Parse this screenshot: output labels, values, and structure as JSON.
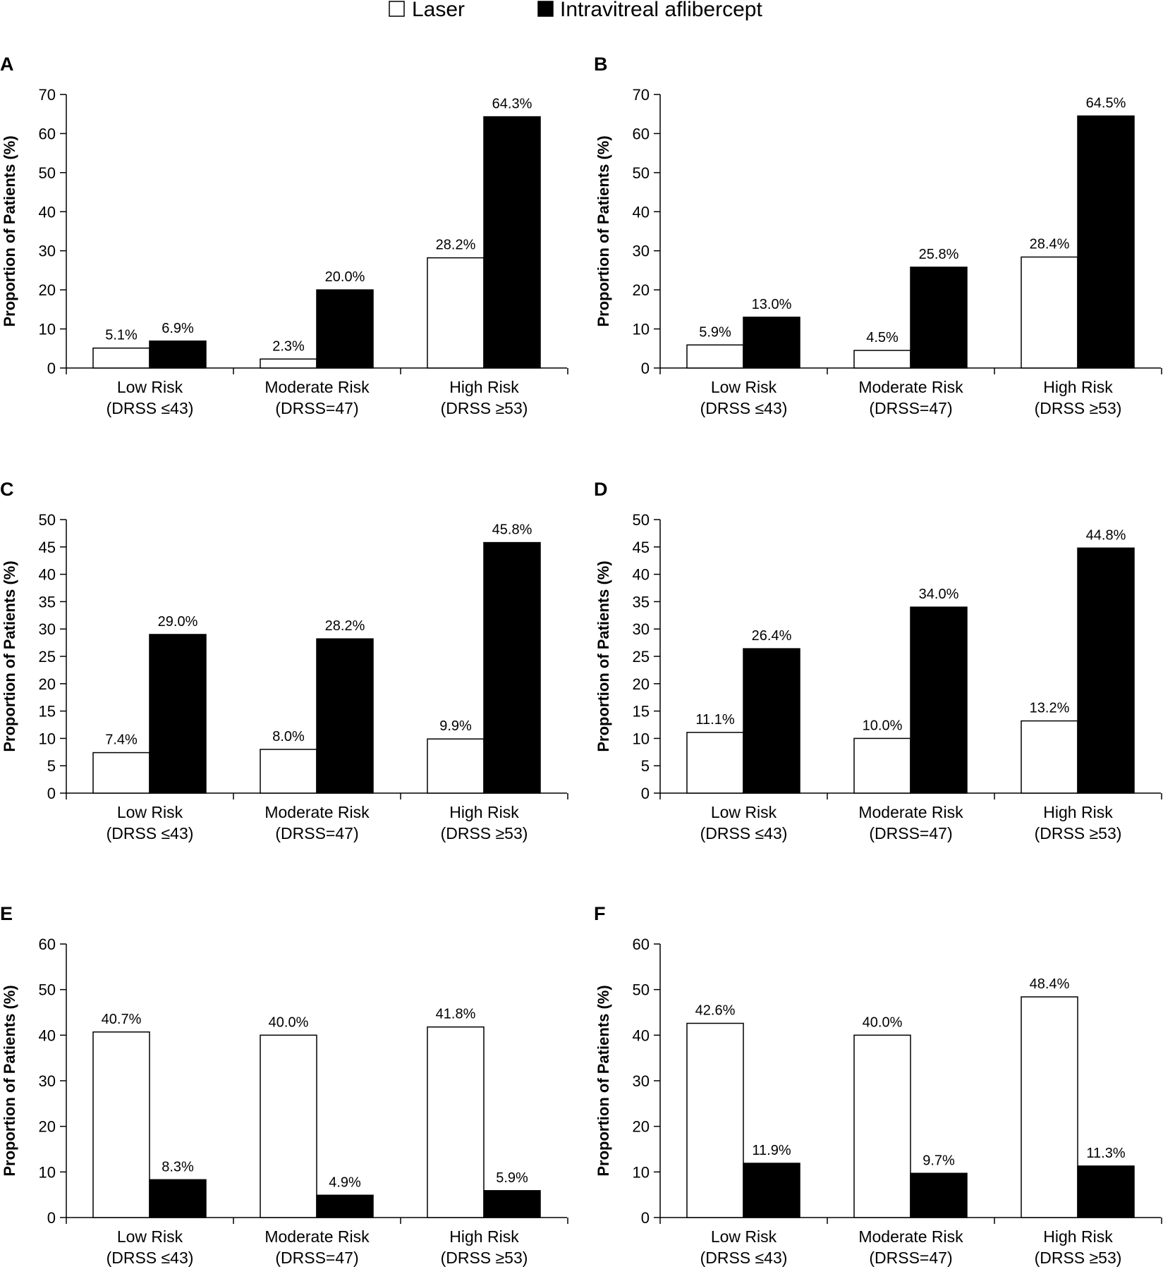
{
  "legend": {
    "laser_label": "Laser",
    "aflibercept_label": "Intravitreal aflibercept",
    "laser_color": "#ffffff",
    "aflibercept_color": "#000000"
  },
  "chart_data": [
    {
      "type": "bar",
      "panel": "A",
      "ylabel": "Proportion of Patients (%)",
      "ylim": [
        0,
        70
      ],
      "yticks": [
        0,
        10,
        20,
        30,
        40,
        50,
        60,
        70
      ],
      "categories": [
        [
          "Low Risk",
          "(DRSS ≤43)"
        ],
        [
          "Moderate Risk",
          "(DRSS=47)"
        ],
        [
          "High Risk",
          "(DRSS ≥53)"
        ]
      ],
      "series": [
        {
          "name": "Laser",
          "values": [
            5.1,
            2.3,
            28.2
          ],
          "labels": [
            "5.1%",
            "2.3%",
            "28.2%"
          ]
        },
        {
          "name": "Intravitreal aflibercept",
          "values": [
            6.9,
            20.0,
            64.3
          ],
          "labels": [
            "6.9%",
            "20.0%",
            "64.3%"
          ]
        }
      ]
    },
    {
      "type": "bar",
      "panel": "B",
      "ylabel": "Proportion of Patients (%)",
      "ylim": [
        0,
        70
      ],
      "yticks": [
        0,
        10,
        20,
        30,
        40,
        50,
        60,
        70
      ],
      "categories": [
        [
          "Low Risk",
          "(DRSS ≤43)"
        ],
        [
          "Moderate Risk",
          "(DRSS=47)"
        ],
        [
          "High Risk",
          "(DRSS ≥53)"
        ]
      ],
      "series": [
        {
          "name": "Laser",
          "values": [
            5.9,
            4.5,
            28.4
          ],
          "labels": [
            "5.9%",
            "4.5%",
            "28.4%"
          ]
        },
        {
          "name": "Intravitreal aflibercept",
          "values": [
            13.0,
            25.8,
            64.5
          ],
          "labels": [
            "13.0%",
            "25.8%",
            "64.5%"
          ]
        }
      ]
    },
    {
      "type": "bar",
      "panel": "C",
      "ylabel": "Proportion of Patients (%)",
      "ylim": [
        0,
        50
      ],
      "yticks": [
        0,
        5,
        10,
        15,
        20,
        25,
        30,
        35,
        40,
        45,
        50
      ],
      "categories": [
        [
          "Low Risk",
          "(DRSS ≤43)"
        ],
        [
          "Moderate Risk",
          "(DRSS=47)"
        ],
        [
          "High Risk",
          "(DRSS ≥53)"
        ]
      ],
      "series": [
        {
          "name": "Laser",
          "values": [
            7.4,
            8.0,
            9.9
          ],
          "labels": [
            "7.4%",
            "8.0%",
            "9.9%"
          ]
        },
        {
          "name": "Intravitreal aflibercept",
          "values": [
            29.0,
            28.2,
            45.8
          ],
          "labels": [
            "29.0%",
            "28.2%",
            "45.8%"
          ]
        }
      ]
    },
    {
      "type": "bar",
      "panel": "D",
      "ylabel": "Proportion of Patients (%)",
      "ylim": [
        0,
        50
      ],
      "yticks": [
        0,
        5,
        10,
        15,
        20,
        25,
        30,
        35,
        40,
        45,
        50
      ],
      "categories": [
        [
          "Low Risk",
          "(DRSS ≤43)"
        ],
        [
          "Moderate Risk",
          "(DRSS=47)"
        ],
        [
          "High Risk",
          "(DRSS ≥53)"
        ]
      ],
      "series": [
        {
          "name": "Laser",
          "values": [
            11.1,
            10.0,
            13.2
          ],
          "labels": [
            "11.1%",
            "10.0%",
            "13.2%"
          ]
        },
        {
          "name": "Intravitreal aflibercept",
          "values": [
            26.4,
            34.0,
            44.8
          ],
          "labels": [
            "26.4%",
            "34.0%",
            "44.8%"
          ]
        }
      ]
    },
    {
      "type": "bar",
      "panel": "E",
      "ylabel": "Proportion of Patients (%)",
      "ylim": [
        0,
        60
      ],
      "yticks": [
        0,
        10,
        20,
        30,
        40,
        50,
        60
      ],
      "categories": [
        [
          "Low Risk",
          "(DRSS ≤43)"
        ],
        [
          "Moderate Risk",
          "(DRSS=47)"
        ],
        [
          "High Risk",
          "(DRSS ≥53)"
        ]
      ],
      "series": [
        {
          "name": "Laser",
          "values": [
            40.7,
            40.0,
            41.8
          ],
          "labels": [
            "40.7%",
            "40.0%",
            "41.8%"
          ]
        },
        {
          "name": "Intravitreal aflibercept",
          "values": [
            8.3,
            4.9,
            5.9
          ],
          "labels": [
            "8.3%",
            "4.9%",
            "5.9%"
          ]
        }
      ]
    },
    {
      "type": "bar",
      "panel": "F",
      "ylabel": "Proportion of Patients (%)",
      "ylim": [
        0,
        60
      ],
      "yticks": [
        0,
        10,
        20,
        30,
        40,
        50,
        60
      ],
      "categories": [
        [
          "Low Risk",
          "(DRSS ≤43)"
        ],
        [
          "Moderate Risk",
          "(DRSS=47)"
        ],
        [
          "High Risk",
          "(DRSS ≥53)"
        ]
      ],
      "series": [
        {
          "name": "Laser",
          "values": [
            42.6,
            40.0,
            48.4
          ],
          "labels": [
            "42.6%",
            "40.0%",
            "48.4%"
          ]
        },
        {
          "name": "Intravitreal aflibercept",
          "values": [
            11.9,
            9.7,
            11.3
          ],
          "labels": [
            "11.9%",
            "9.7%",
            "11.3%"
          ]
        }
      ]
    }
  ]
}
